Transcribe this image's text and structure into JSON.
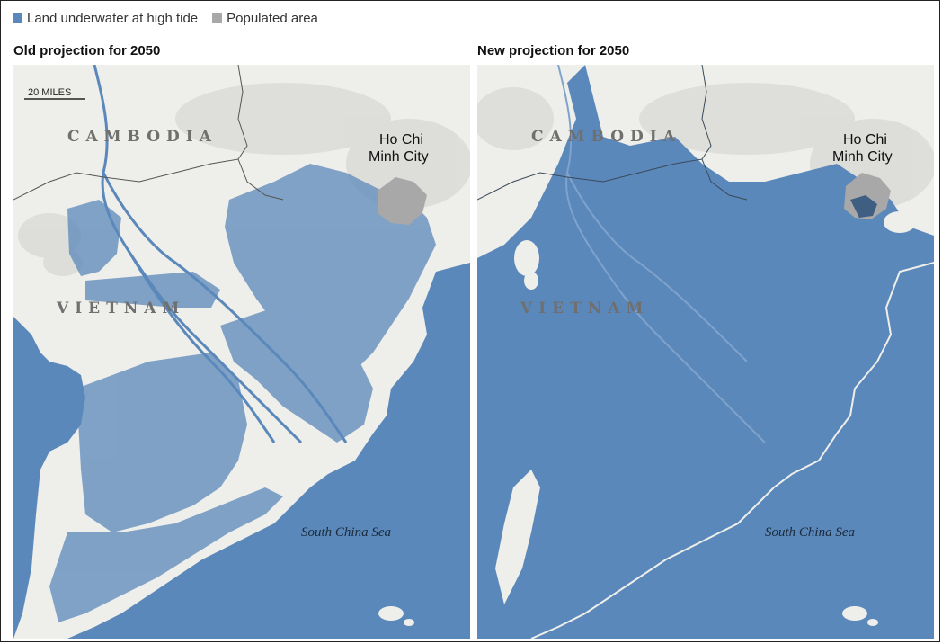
{
  "legend": {
    "items": [
      {
        "label": "Land underwater at high tide",
        "color": "#5b88bb"
      },
      {
        "label": "Populated area",
        "color": "#a8a8a8"
      }
    ]
  },
  "colors": {
    "water": "#5b88bb",
    "land": "#eeeeea",
    "populated": "#a8a8a8",
    "border": "#555555",
    "relief": "#d9d9d6"
  },
  "panels": [
    {
      "title": "Old projection for 2050",
      "labels": {
        "country_1": "CAMBODIA",
        "country_2": "VIETNAM",
        "city_line1": "Ho Chi",
        "city_line2": "Minh City",
        "sea": "South China Sea",
        "scale": "20 MILES"
      }
    },
    {
      "title": "New projection for 2050",
      "labels": {
        "country_1": "CAMBODIA",
        "country_2": "VIETNAM",
        "city_line1": "Ho Chi",
        "city_line2": "Minh City",
        "sea": "South China Sea"
      }
    }
  ]
}
